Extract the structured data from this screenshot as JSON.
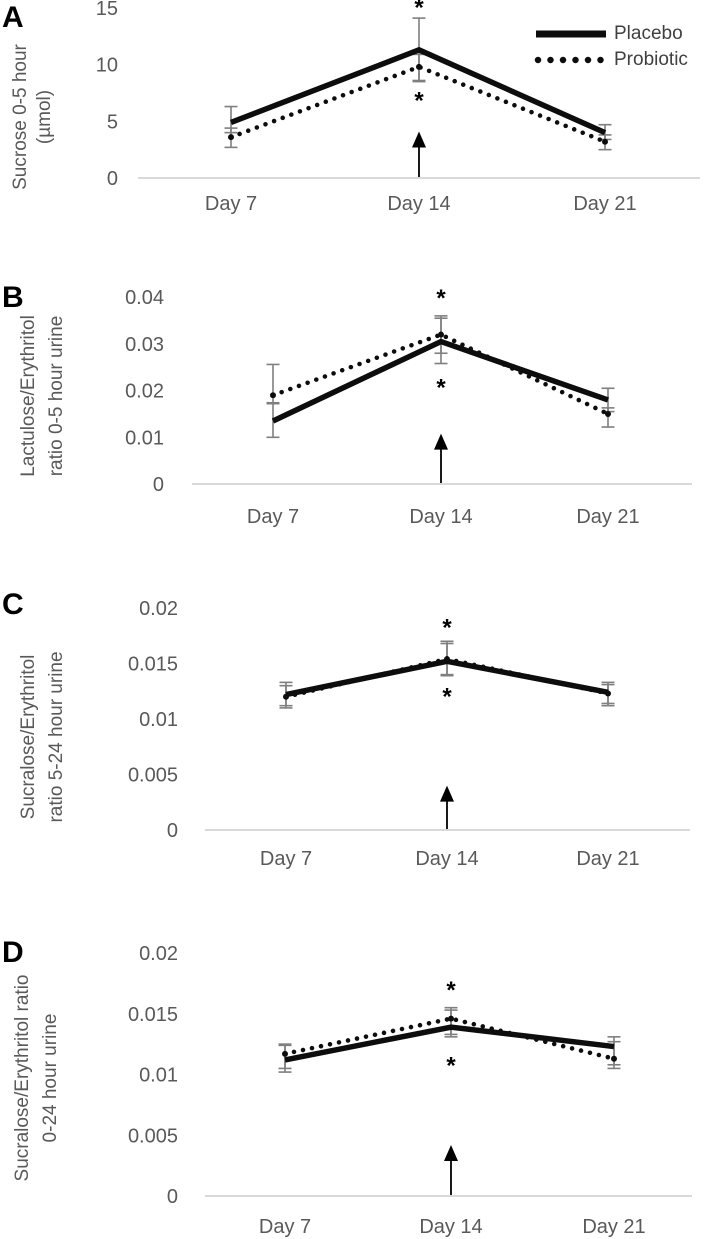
{
  "legend": {
    "position": "top-right",
    "entries": [
      {
        "label": "Placebo",
        "style": "solid"
      },
      {
        "label": "Probiotic",
        "style": "dotted"
      }
    ]
  },
  "chart_data": [
    {
      "type": "line",
      "panel_label": "A",
      "ylabel_lines": [
        "Sucrose 0-5 hour",
        "(µmol)"
      ],
      "categories": [
        "Day 7",
        "Day 14",
        "Day 21"
      ],
      "yticks": [
        "0",
        "5",
        "10",
        "15"
      ],
      "ylim": [
        0,
        15
      ],
      "grid": false,
      "legend_position": "top-right",
      "series": [
        {
          "name": "Placebo",
          "style": "solid",
          "values": [
            4.9,
            11.3,
            4.0
          ],
          "whisker_lo": [
            4.0,
            8.6,
            3.4
          ],
          "whisker_hi": [
            6.3,
            14.1,
            4.7
          ]
        },
        {
          "name": "Probiotic",
          "style": "dotted",
          "values": [
            3.6,
            9.8,
            3.2
          ],
          "whisker_lo": [
            2.7,
            8.5,
            2.5
          ],
          "whisker_hi": [
            4.4,
            10.9,
            3.8
          ]
        }
      ],
      "annotations": {
        "asterisk_above": 15.3,
        "asterisk_below": 7.1,
        "arrow_at_category": "Day 14",
        "arrow_tip_value": 4.1
      }
    },
    {
      "type": "line",
      "panel_label": "B",
      "ylabel_lines": [
        "Lactulose/Erythritol",
        "ratio 0-5 hour urine"
      ],
      "categories": [
        "Day 7",
        "Day 14",
        "Day 21"
      ],
      "yticks": [
        "0",
        "0.01",
        "0.02",
        "0.03",
        "0.04"
      ],
      "ylim": [
        0,
        0.04
      ],
      "grid": false,
      "series": [
        {
          "name": "Placebo",
          "style": "solid",
          "values": [
            0.0135,
            0.0305,
            0.018
          ],
          "whisker_lo": [
            0.01,
            0.0258,
            0.0155
          ],
          "whisker_hi": [
            0.0174,
            0.036,
            0.0205
          ]
        },
        {
          "name": "Probiotic",
          "style": "dotted",
          "values": [
            0.019,
            0.032,
            0.015
          ],
          "whisker_lo": [
            0.0172,
            0.028,
            0.0122
          ],
          "whisker_hi": [
            0.0256,
            0.0355,
            0.0163
          ]
        }
      ],
      "annotations": {
        "asterisk_above": 0.0405,
        "asterisk_below": 0.0213,
        "arrow_at_category": "Day 14",
        "arrow_tip_value": 0.0108
      }
    },
    {
      "type": "line",
      "panel_label": "C",
      "ylabel_lines": [
        "Sucralose/Erythritol",
        "ratio 5-24 hour urine"
      ],
      "categories": [
        "Day 7",
        "Day 14",
        "Day 21"
      ],
      "yticks": [
        "0",
        "0.005",
        "0.01",
        "0.015",
        "0.02"
      ],
      "ylim": [
        0,
        0.02
      ],
      "grid": false,
      "series": [
        {
          "name": "Placebo",
          "style": "solid",
          "values": [
            0.0122,
            0.0152,
            0.0124
          ],
          "whisker_lo": [
            0.011,
            0.0139,
            0.0112
          ],
          "whisker_hi": [
            0.0133,
            0.017,
            0.0133
          ]
        },
        {
          "name": "Probiotic",
          "style": "dotted",
          "values": [
            0.012,
            0.0154,
            0.0123
          ],
          "whisker_lo": [
            0.0112,
            0.014,
            0.0114
          ],
          "whisker_hi": [
            0.013,
            0.0168,
            0.0131
          ]
        }
      ],
      "annotations": {
        "asterisk_above": 0.0185,
        "asterisk_below": 0.0123,
        "arrow_at_category": "Day 14",
        "arrow_tip_value": 0.004
      }
    },
    {
      "type": "line",
      "panel_label": "D",
      "ylabel_lines": [
        "Sucralose/Erythritol ratio",
        "0-24 hour urine"
      ],
      "categories": [
        "Day 7",
        "Day 14",
        "Day 21"
      ],
      "yticks": [
        "0",
        "0.005",
        "0.01",
        "0.015",
        "0.02"
      ],
      "ylim": [
        0,
        0.02
      ],
      "grid": false,
      "series": [
        {
          "name": "Placebo",
          "style": "solid",
          "values": [
            0.0112,
            0.0139,
            0.0123
          ],
          "whisker_lo": [
            0.0102,
            0.0131,
            0.0108
          ],
          "whisker_hi": [
            0.0124,
            0.0155,
            0.0131
          ]
        },
        {
          "name": "Probiotic",
          "style": "dotted",
          "values": [
            0.0117,
            0.0146,
            0.0113
          ],
          "whisker_lo": [
            0.0105,
            0.0133,
            0.0105
          ],
          "whisker_hi": [
            0.0125,
            0.0153,
            0.0127
          ]
        }
      ],
      "annotations": {
        "asterisk_above": 0.0172,
        "asterisk_below": 0.011,
        "arrow_at_category": "Day 14",
        "arrow_tip_value": 0.0042
      }
    }
  ],
  "colors": {
    "line": "#0d0d0d",
    "error_bar": "#7f7f7f",
    "axis_line": "#d9d9d9",
    "axis_text": "#595959",
    "legend_text": "#404040",
    "panel_letter": "#000000"
  }
}
